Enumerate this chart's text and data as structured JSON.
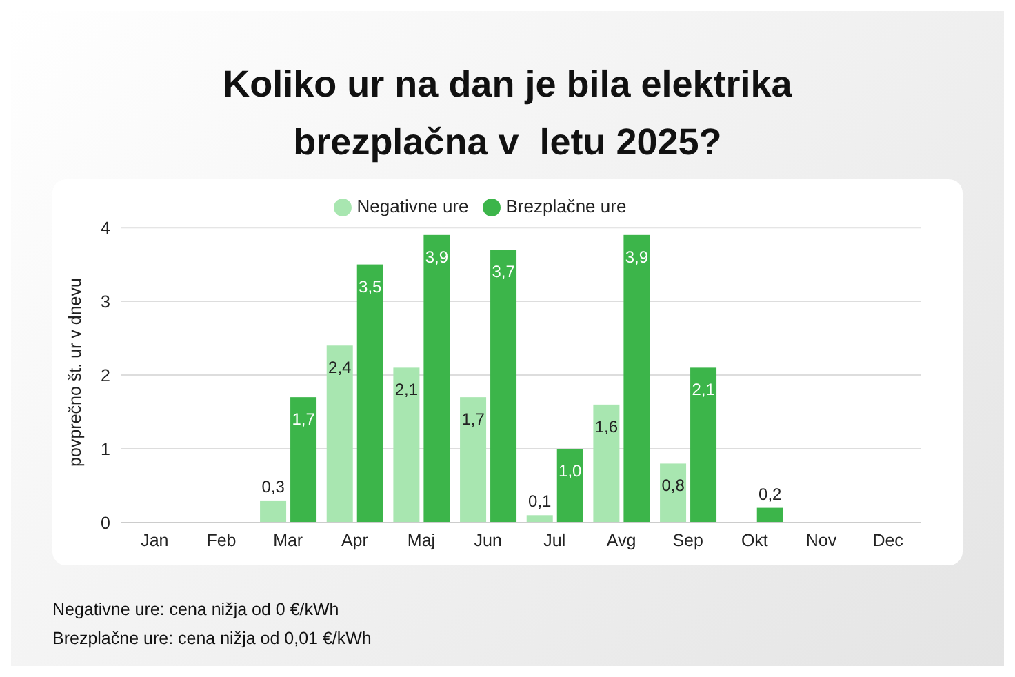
{
  "chart_data": {
    "type": "bar",
    "title": "Koliko ur na dan je bila elektrika\nbrezplačna v  letu 2025?",
    "ylabel": "povprečno št. ur v dnevu",
    "categories": [
      "Jan",
      "Feb",
      "Mar",
      "Apr",
      "Maj",
      "Jun",
      "Jul",
      "Avg",
      "Sep",
      "Okt",
      "Nov",
      "Dec"
    ],
    "series": [
      {
        "name": "Negativne ure",
        "color": "#a8e6b0",
        "values": [
          0,
          0,
          0.3,
          2.4,
          2.1,
          1.7,
          0.1,
          1.6,
          0.8,
          0,
          0,
          0
        ],
        "value_labels": [
          null,
          null,
          "0,3",
          "2,4",
          "2,1",
          "1,7",
          "0,1",
          "1,6",
          "0,8",
          null,
          null,
          null
        ]
      },
      {
        "name": "Brezplačne ure",
        "color": "#3cb54a",
        "values": [
          0,
          0,
          1.7,
          3.5,
          3.9,
          3.7,
          1.0,
          3.9,
          2.1,
          0.2,
          0,
          0
        ],
        "value_labels": [
          null,
          null,
          "1,7",
          "3,5",
          "3,9",
          "3,7",
          "1,0",
          "3,9",
          "2,1",
          "0,2",
          null,
          null
        ]
      }
    ],
    "ylim": [
      0,
      4
    ],
    "yticks": [
      0,
      1,
      2,
      3,
      4
    ],
    "grid": "y",
    "legend": "top",
    "annotations": [
      "Negativne ure: cena nižja od 0 €/kWh",
      "Brezplačne ure: cena nižja od 0,01 €/kWh"
    ]
  }
}
